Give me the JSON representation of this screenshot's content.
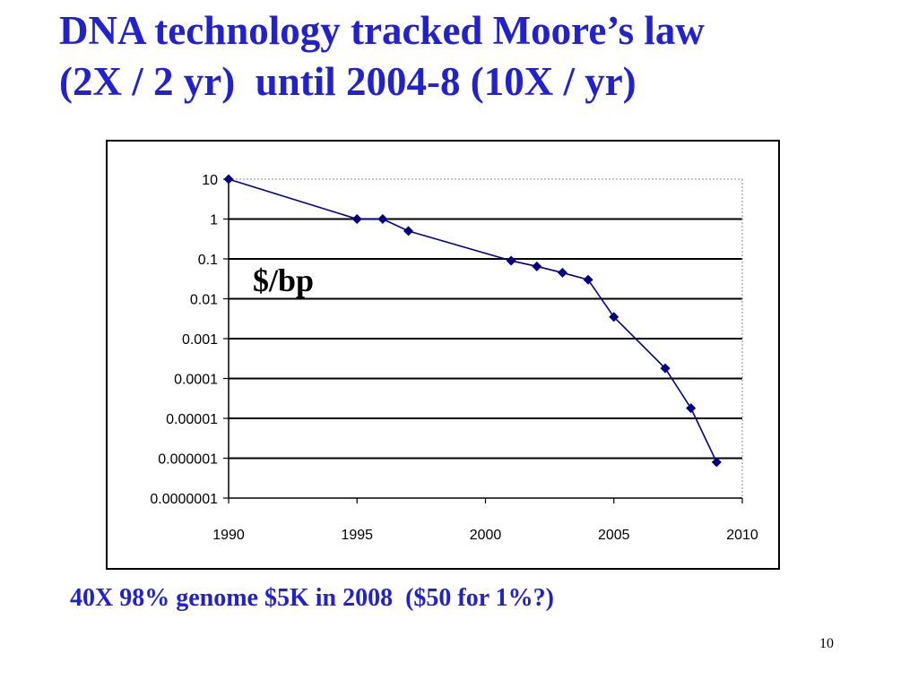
{
  "slide": {
    "title_line1": "DNA technology tracked Moore’s law",
    "title_line2": "(2X / 2 yr)  until 2004-8 (10X / yr)",
    "unit_label": "$/bp",
    "caption": "40X 98% genome $5K in 2008  ($50 for 1%?)",
    "slide_number": "10",
    "title_color": "#2222cc",
    "series_color": "#000080"
  },
  "chart_data": {
    "type": "line",
    "title": "",
    "xlabel": "",
    "ylabel": "$/bp",
    "yscale": "log",
    "xlim": [
      1990,
      2010
    ],
    "ylim": [
      1e-07,
      10
    ],
    "x_ticks": [
      "1990",
      "1995",
      "2000",
      "2005",
      "2010"
    ],
    "y_ticks": [
      "10",
      "1",
      "0.1",
      "0.01",
      "0.001",
      "0.0001",
      "0.00001",
      "0.000001",
      "0.0000001"
    ],
    "grid": true,
    "series": [
      {
        "x": [
          1990,
          1995,
          1996,
          1997,
          2001,
          2002,
          2003,
          2004,
          2005,
          2007,
          2008,
          2009
        ],
        "y": [
          10,
          1,
          1,
          0.5,
          0.09,
          0.065,
          0.045,
          0.03,
          0.0035,
          0.00018,
          1.8e-05,
          8e-07
        ]
      }
    ]
  }
}
